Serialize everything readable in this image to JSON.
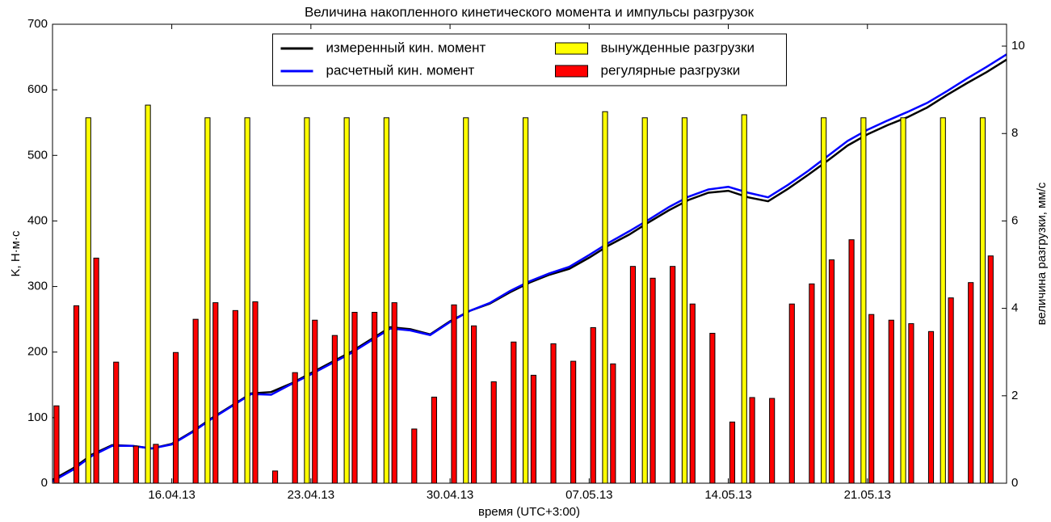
{
  "chart_data": {
    "type": "combo",
    "title": "Величина накопленного кинетического момента и импульсы разгрузок",
    "x_label": "время (UTC+3:00)",
    "y_label": "K, Н·м·с",
    "y2_label": "величина разгрузки, мм/с",
    "xlim": [
      "2013-04-10",
      "2013-05-28"
    ],
    "xticks": [
      {
        "value": "2013-04-16",
        "label": "16.04.13"
      },
      {
        "value": "2013-04-23",
        "label": "23.04.13"
      },
      {
        "value": "2013-04-30",
        "label": "30.04.13"
      },
      {
        "value": "2013-05-07",
        "label": "07.05.13"
      },
      {
        "value": "2013-05-14",
        "label": "14.05.13"
      },
      {
        "value": "2013-05-21",
        "label": "21.05.13"
      }
    ],
    "ylim": [
      0,
      700
    ],
    "yticks": [
      0,
      100,
      200,
      300,
      400,
      500,
      600,
      700
    ],
    "y2lim": [
      0,
      10.5
    ],
    "y2ticks": [
      0,
      2,
      4,
      6,
      8,
      10
    ],
    "legend": "upper center",
    "series": [
      {
        "name": "измеренный кин. момент",
        "type": "line",
        "color": "#000000",
        "x": [
          "2013-04-10",
          "2013-04-11",
          "2013-04-12",
          "2013-04-13",
          "2013-04-14",
          "2013-04-15",
          "2013-04-16",
          "2013-04-17",
          "2013-04-18",
          "2013-04-19",
          "2013-04-20",
          "2013-04-21",
          "2013-04-22",
          "2013-04-23",
          "2013-04-24",
          "2013-04-25",
          "2013-04-26",
          "2013-04-27",
          "2013-04-28",
          "2013-04-29",
          "2013-04-30",
          "2013-05-01",
          "2013-05-02",
          "2013-05-03",
          "2013-05-04",
          "2013-05-05",
          "2013-05-06",
          "2013-05-07",
          "2013-05-08",
          "2013-05-09",
          "2013-05-10",
          "2013-05-11",
          "2013-05-12",
          "2013-05-13",
          "2013-05-14",
          "2013-05-15",
          "2013-05-16",
          "2013-05-17",
          "2013-05-18",
          "2013-05-19",
          "2013-05-20",
          "2013-05-21",
          "2013-05-22",
          "2013-05-23",
          "2013-05-24",
          "2013-05-25",
          "2013-05-26",
          "2013-05-27",
          "2013-05-28"
        ],
        "values": [
          5,
          22,
          44,
          58,
          57,
          53,
          60,
          78,
          99,
          118,
          137,
          139,
          152,
          168,
          184,
          200,
          219,
          238,
          235,
          227,
          247,
          263,
          274,
          291,
          306,
          318,
          327,
          344,
          363,
          379,
          398,
          416,
          432,
          443,
          446,
          436,
          430,
          449,
          470,
          492,
          515,
          532,
          546,
          558,
          573,
          592,
          610,
          627,
          646
        ]
      },
      {
        "name": "расчетный кин. момент",
        "type": "line",
        "color": "#0000ff",
        "x": [
          "2013-04-10",
          "2013-04-11",
          "2013-04-12",
          "2013-04-13",
          "2013-04-14",
          "2013-04-15",
          "2013-04-16",
          "2013-04-17",
          "2013-04-18",
          "2013-04-19",
          "2013-04-20",
          "2013-04-21",
          "2013-04-22",
          "2013-04-23",
          "2013-04-24",
          "2013-04-25",
          "2013-04-26",
          "2013-04-27",
          "2013-04-28",
          "2013-04-29",
          "2013-04-30",
          "2013-05-01",
          "2013-05-02",
          "2013-05-03",
          "2013-05-04",
          "2013-05-05",
          "2013-05-06",
          "2013-05-07",
          "2013-05-08",
          "2013-05-09",
          "2013-05-10",
          "2013-05-11",
          "2013-05-12",
          "2013-05-13",
          "2013-05-14",
          "2013-05-15",
          "2013-05-16",
          "2013-05-17",
          "2013-05-18",
          "2013-05-19",
          "2013-05-20",
          "2013-05-21",
          "2013-05-22",
          "2013-05-23",
          "2013-05-24",
          "2013-05-25",
          "2013-05-26",
          "2013-05-27",
          "2013-05-28"
        ],
        "values": [
          3,
          20,
          42,
          57,
          57,
          53,
          59,
          77,
          98,
          117,
          136,
          135,
          151,
          166,
          182,
          198,
          217,
          236,
          233,
          226,
          246,
          263,
          275,
          293,
          308,
          320,
          330,
          348,
          367,
          384,
          402,
          421,
          437,
          448,
          452,
          443,
          436,
          455,
          476,
          499,
          522,
          539,
          553,
          566,
          580,
          598,
          617,
          635,
          654
        ]
      },
      {
        "name": "вынужденные разгрузки",
        "type": "bar",
        "axis": "y2",
        "color": "#ffff00",
        "offset": -0.2,
        "x": [
          "2013-04-12",
          "2013-04-15",
          "2013-04-18",
          "2013-04-20",
          "2013-04-23",
          "2013-04-25",
          "2013-04-27",
          "2013-05-01",
          "2013-05-04",
          "2013-05-08",
          "2013-05-10",
          "2013-05-12",
          "2013-05-15",
          "2013-05-19",
          "2013-05-21",
          "2013-05-23",
          "2013-05-25",
          "2013-05-27"
        ],
        "values": [
          8.36,
          8.65,
          8.36,
          8.36,
          8.36,
          8.36,
          8.36,
          8.36,
          8.36,
          8.5,
          8.36,
          8.36,
          8.43,
          8.36,
          8.36,
          8.36,
          8.36,
          8.36
        ]
      },
      {
        "name": "регулярные разгрузки",
        "type": "bar",
        "axis": "y2",
        "color": "#ff0000",
        "offset": 0.2,
        "x": [
          "2013-04-10",
          "2013-04-11",
          "2013-04-12",
          "2013-04-13",
          "2013-04-14",
          "2013-04-15",
          "2013-04-16",
          "2013-04-17",
          "2013-04-18",
          "2013-04-19",
          "2013-04-20",
          "2013-04-21",
          "2013-04-22",
          "2013-04-23",
          "2013-04-24",
          "2013-04-25",
          "2013-04-26",
          "2013-04-27",
          "2013-04-28",
          "2013-04-29",
          "2013-04-30",
          "2013-05-01",
          "2013-05-02",
          "2013-05-03",
          "2013-05-04",
          "2013-05-05",
          "2013-05-06",
          "2013-05-07",
          "2013-05-08",
          "2013-05-09",
          "2013-05-10",
          "2013-05-11",
          "2013-05-12",
          "2013-05-13",
          "2013-05-14",
          "2013-05-15",
          "2013-05-16",
          "2013-05-17",
          "2013-05-18",
          "2013-05-19",
          "2013-05-20",
          "2013-05-21",
          "2013-05-22",
          "2013-05-23",
          "2013-05-24",
          "2013-05-25",
          "2013-05-26",
          "2013-05-27"
        ],
        "values": [
          1.77,
          4.06,
          5.15,
          2.77,
          0.85,
          0.89,
          2.99,
          3.75,
          4.13,
          3.95,
          4.15,
          0.28,
          2.53,
          3.73,
          3.38,
          3.91,
          3.91,
          4.13,
          1.24,
          1.97,
          4.08,
          3.6,
          2.32,
          3.23,
          2.47,
          3.19,
          2.79,
          3.56,
          2.73,
          4.96,
          4.69,
          4.96,
          4.1,
          3.43,
          1.4,
          1.96,
          1.94,
          4.1,
          4.56,
          5.11,
          5.57,
          3.86,
          3.73,
          3.65,
          3.47,
          4.24,
          4.59,
          5.2
        ]
      }
    ]
  }
}
